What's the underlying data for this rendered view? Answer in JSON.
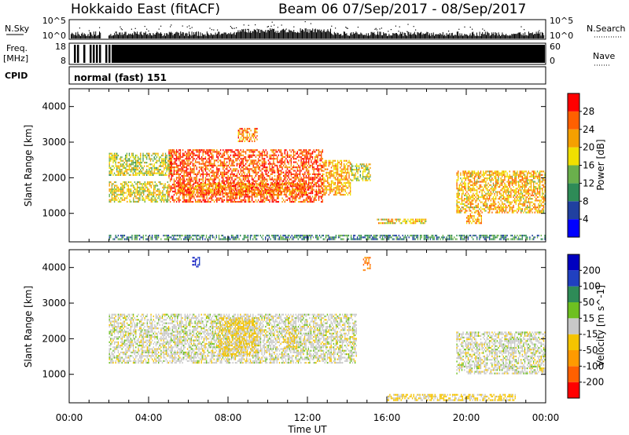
{
  "header": {
    "title": "Hokkaido East (fitACF)",
    "subtitle": "Beam 06  07/Sep/2017 - 08/Sep/2017"
  },
  "strips": {
    "nsky_label": "N.Sky",
    "nsearch_label": "N.Search",
    "nsky_ticks": [
      "10^5",
      "10^0"
    ],
    "freq_label_1": "Freq.",
    "freq_label_2": "[MHz]",
    "freq_ticks": [
      "18",
      "8"
    ],
    "nave_label": "Nave",
    "nave_ticks": [
      "60",
      "0"
    ],
    "cpid_label": "CPID",
    "cpid_text": "normal (fast) 151"
  },
  "colors": {
    "power_scale": [
      "#0000ff",
      "#2040a0",
      "#2e8b57",
      "#6ab04c",
      "#f0e000",
      "#f5a000",
      "#ff6000",
      "#ff0000"
    ],
    "velocity_scale": [
      "#ff0000",
      "#ff6000",
      "#ff9a00",
      "#f5c400",
      "#c8c8c8",
      "#6ec020",
      "#2e8b57",
      "#2040c0",
      "#0000c0"
    ]
  },
  "chart_data": [
    {
      "type": "heatmap",
      "panel": "power",
      "ylabel": "Slant Range [km]",
      "xlabel": "",
      "x_range": [
        "00:00",
        "00:00"
      ],
      "x_ticks": [
        "00:00",
        "04:00",
        "08:00",
        "12:00",
        "16:00",
        "20:00",
        "00:00"
      ],
      "y_range": [
        200,
        4500
      ],
      "y_ticks": [
        1000,
        2000,
        3000,
        4000
      ],
      "colorbar": {
        "label": "Power [dB]",
        "ticks": [
          "28",
          "24",
          "20",
          "16",
          "12",
          "8",
          "4"
        ],
        "range": [
          0,
          32
        ]
      },
      "regions": [
        {
          "t0": 2.0,
          "t1": 5.0,
          "r0": 1300,
          "r1": 1900,
          "value": 18
        },
        {
          "t0": 2.0,
          "t1": 5.2,
          "r0": 2050,
          "r1": 2700,
          "value": 17
        },
        {
          "t0": 5.0,
          "t1": 12.8,
          "r0": 1300,
          "r1": 2800,
          "value": 27
        },
        {
          "t0": 5.5,
          "t1": 12.0,
          "r0": 1500,
          "r1": 1850,
          "value": 24
        },
        {
          "t0": 12.8,
          "t1": 14.2,
          "r0": 1500,
          "r1": 2500,
          "value": 22
        },
        {
          "t0": 14.2,
          "t1": 15.2,
          "r0": 1900,
          "r1": 2400,
          "value": 17
        },
        {
          "t0": 15.5,
          "t1": 18.0,
          "r0": 700,
          "r1": 850,
          "value": 20
        },
        {
          "t0": 19.5,
          "t1": 24.0,
          "r0": 1000,
          "r1": 2200,
          "value": 21
        },
        {
          "t0": 20.0,
          "t1": 20.8,
          "r0": 700,
          "r1": 1000,
          "value": 22
        },
        {
          "t0": 8.5,
          "t1": 9.5,
          "r0": 3000,
          "r1": 3400,
          "value": 24
        },
        {
          "t0": 2.0,
          "t1": 24.0,
          "r0": 250,
          "r1": 400,
          "value": 10
        }
      ]
    },
    {
      "type": "heatmap",
      "panel": "velocity",
      "ylabel": "Slant Range [km]",
      "xlabel": "Time UT",
      "x_range": [
        "00:00",
        "00:00"
      ],
      "x_ticks": [
        "00:00",
        "04:00",
        "08:00",
        "12:00",
        "16:00",
        "20:00",
        "00:00"
      ],
      "y_range": [
        200,
        4500
      ],
      "y_ticks": [
        1000,
        2000,
        3000,
        4000
      ],
      "colorbar": {
        "label": "Velocity [m s^-1]",
        "ticks": [
          "200",
          "100",
          "50",
          "15",
          "-15",
          "-50",
          "-100",
          "-200"
        ],
        "range": [
          -250,
          250
        ]
      },
      "regions": [
        {
          "t0": 2.0,
          "t1": 14.5,
          "r0": 1300,
          "r1": 2700,
          "value": 0
        },
        {
          "t0": 7.5,
          "t1": 9.5,
          "r0": 1500,
          "r1": 2600,
          "value": -40
        },
        {
          "t0": 10.8,
          "t1": 11.5,
          "r0": 1700,
          "r1": 2300,
          "value": -40
        },
        {
          "t0": 16.0,
          "t1": 22.5,
          "r0": 250,
          "r1": 450,
          "value": -40
        },
        {
          "t0": 19.5,
          "t1": 24.0,
          "r0": 1000,
          "r1": 2200,
          "value": 0
        },
        {
          "t0": 14.8,
          "t1": 15.2,
          "r0": 3900,
          "r1": 4300,
          "value": -150
        },
        {
          "t0": 6.2,
          "t1": 6.6,
          "r0": 4000,
          "r1": 4300,
          "value": 180
        }
      ]
    }
  ]
}
